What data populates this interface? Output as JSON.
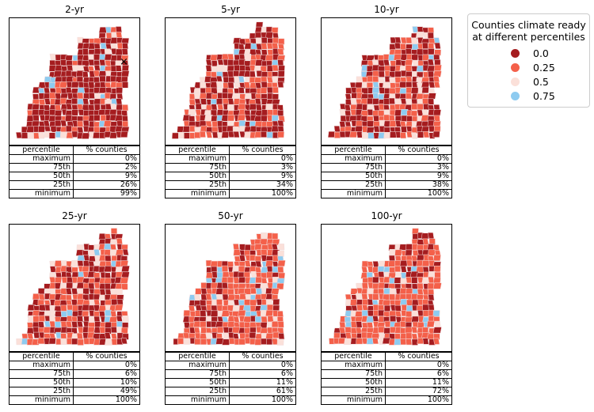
{
  "colors": {
    "level_0": "#a51c1f",
    "level_25": "#f4604a",
    "level_50": "#fbe0d9",
    "level_75": "#8ecbf0",
    "boundary": "#f2dcdc"
  },
  "legend": {
    "title_line1": "Counties climate ready",
    "title_line2": "at different percentiles",
    "items": [
      {
        "label": "0.0",
        "color": "#a51c1f"
      },
      {
        "label": "0.25",
        "color": "#f4604a"
      },
      {
        "label": "0.5",
        "color": "#fbe0d9"
      },
      {
        "label": "0.75",
        "color": "#8ecbf0"
      }
    ]
  },
  "table_headers": {
    "col1": "percentile",
    "col2": "% counties"
  },
  "panels": [
    {
      "title": "2-yr",
      "mix": [
        0.72,
        0.16,
        0.07,
        0.05
      ],
      "marker": "×",
      "rows": [
        {
          "p": "maximum",
          "v": "0%"
        },
        {
          "p": "75th",
          "v": "2%"
        },
        {
          "p": "50th",
          "v": "9%"
        },
        {
          "p": "25th",
          "v": "26%"
        },
        {
          "p": "minimum",
          "v": "99%"
        }
      ]
    },
    {
      "title": "5-yr",
      "mix": [
        0.55,
        0.3,
        0.1,
        0.05
      ],
      "marker": "",
      "rows": [
        {
          "p": "maximum",
          "v": "0%"
        },
        {
          "p": "75th",
          "v": "3%"
        },
        {
          "p": "50th",
          "v": "9%"
        },
        {
          "p": "25th",
          "v": "34%"
        },
        {
          "p": "minimum",
          "v": "100%"
        }
      ]
    },
    {
      "title": "10-yr",
      "mix": [
        0.55,
        0.3,
        0.1,
        0.05
      ],
      "marker": "",
      "rows": [
        {
          "p": "maximum",
          "v": "0%"
        },
        {
          "p": "75th",
          "v": "3%"
        },
        {
          "p": "50th",
          "v": "9%"
        },
        {
          "p": "25th",
          "v": "38%"
        },
        {
          "p": "minimum",
          "v": "100%"
        }
      ]
    },
    {
      "title": "25-yr",
      "mix": [
        0.45,
        0.38,
        0.1,
        0.07
      ],
      "marker": "",
      "rows": [
        {
          "p": "maximum",
          "v": "0%"
        },
        {
          "p": "75th",
          "v": "6%"
        },
        {
          "p": "50th",
          "v": "10%"
        },
        {
          "p": "25th",
          "v": "49%"
        },
        {
          "p": "minimum",
          "v": "100%"
        }
      ]
    },
    {
      "title": "50-yr",
      "mix": [
        0.33,
        0.5,
        0.1,
        0.07
      ],
      "marker": "",
      "rows": [
        {
          "p": "maximum",
          "v": "0%"
        },
        {
          "p": "75th",
          "v": "6%"
        },
        {
          "p": "50th",
          "v": "11%"
        },
        {
          "p": "25th",
          "v": "61%"
        },
        {
          "p": "minimum",
          "v": "100%"
        }
      ]
    },
    {
      "title": "100-yr",
      "mix": [
        0.25,
        0.58,
        0.1,
        0.07
      ],
      "marker": "",
      "rows": [
        {
          "p": "maximum",
          "v": "0%"
        },
        {
          "p": "75th",
          "v": "6%"
        },
        {
          "p": "50th",
          "v": "11%"
        },
        {
          "p": "25th",
          "v": "72%"
        },
        {
          "p": "minimum",
          "v": "100%"
        }
      ]
    }
  ]
}
